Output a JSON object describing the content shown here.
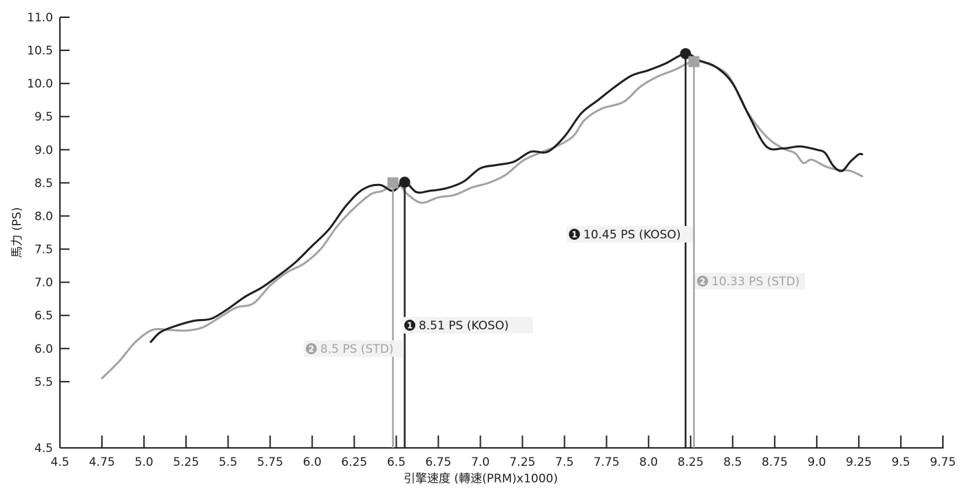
{
  "chart_data": {
    "type": "line",
    "title": "",
    "xlabel": "引擎速度 (轉速(PRM)x1000)",
    "ylabel": "馬力 (PS)",
    "xlim": [
      4.5,
      9.75
    ],
    "ylim": [
      4.5,
      11.0
    ],
    "x_ticks": [
      "4.5",
      "4.75",
      "5.0",
      "5.25",
      "5.5",
      "5.75",
      "6.0",
      "6.25",
      "6.5",
      "6.75",
      "7.0",
      "7.25",
      "7.5",
      "7.75",
      "8.0",
      "8.25",
      "8.5",
      "8.75",
      "9.0",
      "9.25",
      "9.5",
      "9.75"
    ],
    "y_ticks": [
      "4.5",
      "5.5",
      "6.0",
      "6.5",
      "7.0",
      "7.5",
      "8.0",
      "8.5",
      "9.0",
      "9.5",
      "10.0",
      "10.5",
      "11.0"
    ],
    "grid": false,
    "series": [
      {
        "name": "",
        "color": "#1f1f1f",
        "points": [
          [
            5.04,
            6.1
          ],
          [
            5.1,
            6.25
          ],
          [
            5.2,
            6.35
          ],
          [
            5.3,
            6.42
          ],
          [
            5.4,
            6.45
          ],
          [
            5.5,
            6.6
          ],
          [
            5.6,
            6.78
          ],
          [
            5.7,
            6.92
          ],
          [
            5.8,
            7.1
          ],
          [
            5.9,
            7.3
          ],
          [
            6.0,
            7.55
          ],
          [
            6.1,
            7.8
          ],
          [
            6.2,
            8.15
          ],
          [
            6.3,
            8.4
          ],
          [
            6.4,
            8.47
          ],
          [
            6.48,
            8.38
          ],
          [
            6.55,
            8.51
          ],
          [
            6.62,
            8.36
          ],
          [
            6.7,
            8.38
          ],
          [
            6.8,
            8.42
          ],
          [
            6.9,
            8.52
          ],
          [
            7.0,
            8.72
          ],
          [
            7.1,
            8.77
          ],
          [
            7.2,
            8.82
          ],
          [
            7.3,
            8.97
          ],
          [
            7.4,
            8.97
          ],
          [
            7.5,
            9.2
          ],
          [
            7.6,
            9.55
          ],
          [
            7.7,
            9.75
          ],
          [
            7.8,
            9.95
          ],
          [
            7.9,
            10.12
          ],
          [
            8.0,
            10.2
          ],
          [
            8.1,
            10.3
          ],
          [
            8.22,
            10.45
          ],
          [
            8.3,
            10.35
          ],
          [
            8.4,
            10.25
          ],
          [
            8.5,
            10.0
          ],
          [
            8.6,
            9.5
          ],
          [
            8.7,
            9.05
          ],
          [
            8.8,
            9.02
          ],
          [
            8.9,
            9.05
          ],
          [
            9.0,
            9.0
          ],
          [
            9.05,
            8.95
          ],
          [
            9.1,
            8.75
          ],
          [
            9.15,
            8.68
          ],
          [
            9.2,
            8.82
          ],
          [
            9.25,
            8.93
          ],
          [
            9.27,
            8.93
          ]
        ]
      },
      {
        "name": "",
        "color": "#a3a3a3",
        "points": [
          [
            4.75,
            5.55
          ],
          [
            4.85,
            5.8
          ],
          [
            4.95,
            6.1
          ],
          [
            5.05,
            6.28
          ],
          [
            5.15,
            6.28
          ],
          [
            5.25,
            6.27
          ],
          [
            5.35,
            6.32
          ],
          [
            5.45,
            6.47
          ],
          [
            5.55,
            6.62
          ],
          [
            5.65,
            6.68
          ],
          [
            5.75,
            6.95
          ],
          [
            5.85,
            7.15
          ],
          [
            5.95,
            7.28
          ],
          [
            6.05,
            7.5
          ],
          [
            6.15,
            7.85
          ],
          [
            6.25,
            8.12
          ],
          [
            6.35,
            8.33
          ],
          [
            6.42,
            8.38
          ],
          [
            6.5,
            8.5
          ],
          [
            6.57,
            8.32
          ],
          [
            6.65,
            8.2
          ],
          [
            6.75,
            8.28
          ],
          [
            6.85,
            8.32
          ],
          [
            6.95,
            8.43
          ],
          [
            7.05,
            8.5
          ],
          [
            7.15,
            8.62
          ],
          [
            7.25,
            8.83
          ],
          [
            7.35,
            8.95
          ],
          [
            7.45,
            9.05
          ],
          [
            7.55,
            9.2
          ],
          [
            7.62,
            9.45
          ],
          [
            7.72,
            9.62
          ],
          [
            7.85,
            9.72
          ],
          [
            7.95,
            9.95
          ],
          [
            8.05,
            10.1
          ],
          [
            8.15,
            10.2
          ],
          [
            8.27,
            10.33
          ],
          [
            8.38,
            10.27
          ],
          [
            8.48,
            10.1
          ],
          [
            8.58,
            9.6
          ],
          [
            8.7,
            9.2
          ],
          [
            8.8,
            9.02
          ],
          [
            8.87,
            8.95
          ],
          [
            8.92,
            8.8
          ],
          [
            8.97,
            8.85
          ],
          [
            9.05,
            8.75
          ],
          [
            9.12,
            8.7
          ],
          [
            9.2,
            8.68
          ],
          [
            9.27,
            8.6
          ]
        ]
      }
    ],
    "annotations": [
      {
        "marker": "circle",
        "x": 6.55,
        "y": 8.51,
        "color": "#1f1f1f",
        "badge": "1",
        "text": "8.51 PS (KOSO)"
      },
      {
        "marker": "square",
        "x": 6.48,
        "y": 8.5,
        "color": "#a3a3a3",
        "badge": "2",
        "text": "8.5 PS (STD)"
      },
      {
        "marker": "circle",
        "x": 8.22,
        "y": 10.45,
        "color": "#1f1f1f",
        "badge": "1",
        "text": "10.45 PS (KOSO)"
      },
      {
        "marker": "square",
        "x": 8.27,
        "y": 10.33,
        "color": "#a3a3a3",
        "badge": "2",
        "text": "10.33 PS (STD)"
      }
    ]
  }
}
